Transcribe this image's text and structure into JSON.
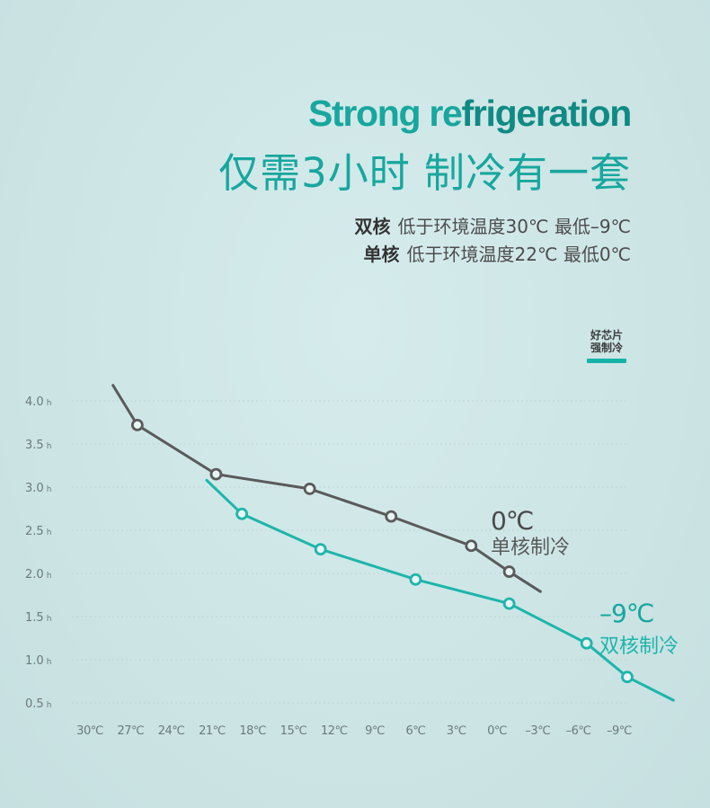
{
  "header": {
    "title_en_a": "Strong re",
    "title_en_b": "frigeration",
    "title_cn": "仅需3小时 制冷有一套",
    "spec_dual_label": "双核",
    "spec_dual_text": "低于环境温度30℃  最低–9℃",
    "spec_single_label": "单核",
    "spec_single_text": "低于环境温度22℃  最低0℃"
  },
  "badge": {
    "line1": "好芯片",
    "line2": "强制冷"
  },
  "colors": {
    "accent": "#17b3aa",
    "title": "#17a79f",
    "single": "#5a5a5a",
    "dual": "#1db5ab",
    "grid": "#bfd5d6"
  },
  "chart_data": {
    "type": "line",
    "x_tick_labels": [
      "30℃",
      "27℃",
      "24℃",
      "21℃",
      "18℃",
      "15℃",
      "12℃",
      "9℃",
      "6℃",
      "3℃",
      "0℃",
      "–3℃",
      "–6℃",
      "–9℃"
    ],
    "x_values": [
      30,
      27,
      24,
      21,
      18,
      15,
      12,
      9,
      6,
      3,
      0,
      -3,
      -6,
      -9
    ],
    "xlim": [
      30,
      -9
    ],
    "y_ticks": [
      4.0,
      3.5,
      3.0,
      2.5,
      2.0,
      1.5,
      1.0,
      0.5
    ],
    "y_tick_labels": [
      "4.0",
      "3.5",
      "3.0",
      "2.5",
      "2.0",
      "1.5",
      "1.0",
      "0.5"
    ],
    "y_unit": "h",
    "grid": true,
    "series": [
      {
        "name": "单核制冷",
        "end_label": "0℃",
        "color": "#5a5a5a",
        "line": [
          [
            28.3,
            4.18
          ],
          [
            26.5,
            3.72
          ],
          [
            20.7,
            3.15
          ],
          [
            13.8,
            2.98
          ],
          [
            7.8,
            2.66
          ],
          [
            1.9,
            2.32
          ],
          [
            -0.9,
            2.02
          ],
          [
            -3.2,
            1.79
          ]
        ],
        "markers": [
          [
            26.5,
            3.72
          ],
          [
            20.7,
            3.15
          ],
          [
            13.8,
            2.98
          ],
          [
            7.8,
            2.66
          ],
          [
            1.9,
            2.32
          ],
          [
            -0.9,
            2.02
          ]
        ]
      },
      {
        "name": "双核制冷",
        "end_label": "–9℃",
        "color": "#1db5ab",
        "line": [
          [
            21.4,
            3.08
          ],
          [
            18.8,
            2.69
          ],
          [
            13.0,
            2.28
          ],
          [
            6.0,
            1.93
          ],
          [
            -0.9,
            1.65
          ],
          [
            -6.6,
            1.19
          ],
          [
            -9.6,
            0.8
          ],
          [
            -13.0,
            0.53
          ]
        ],
        "markers": [
          [
            18.8,
            2.69
          ],
          [
            13.0,
            2.28
          ],
          [
            6.0,
            1.93
          ],
          [
            -0.9,
            1.65
          ],
          [
            -6.6,
            1.19
          ],
          [
            -9.6,
            0.8
          ]
        ]
      }
    ]
  }
}
